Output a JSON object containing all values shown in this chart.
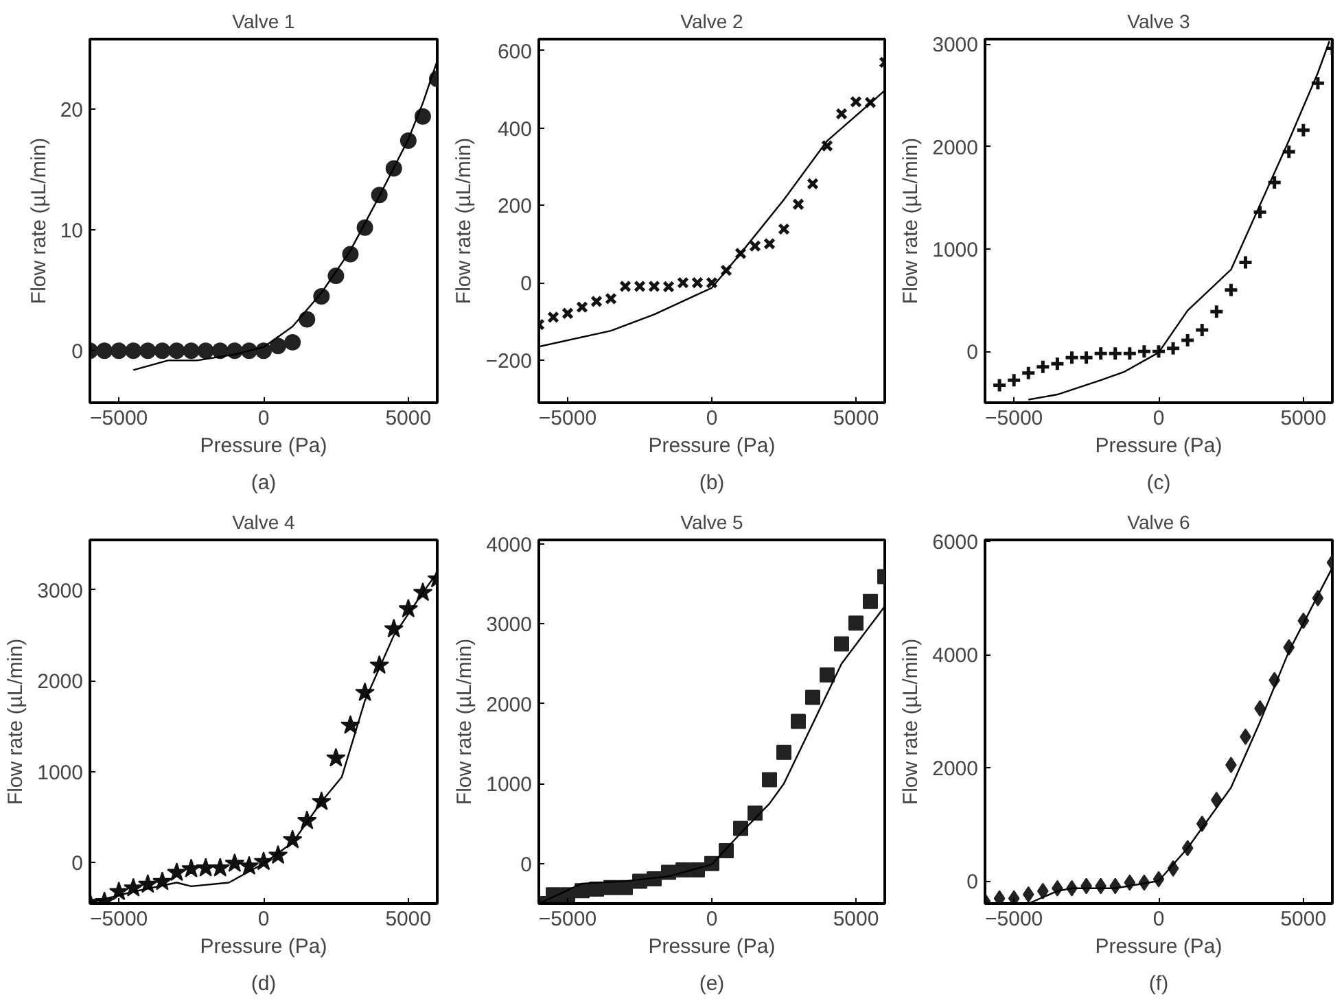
{
  "chart_data": [
    {
      "type": "scatter",
      "title": "Valve 1",
      "xlabel": "Pressure (Pa)",
      "ylabel": "Flow rate (µL/min)",
      "annotations": [
        "(a)"
      ],
      "xlim": [
        -6000,
        6000
      ],
      "ylim": [
        -4.3,
        25.8
      ],
      "xticks": [
        -5000,
        0,
        5000
      ],
      "yticks": [
        0,
        10,
        20
      ],
      "grid": false,
      "series": [
        {
          "marker": "circle",
          "color": "#222222",
          "x": [
            -6000,
            -5500,
            -5000,
            -4500,
            -4000,
            -3500,
            -3000,
            -2500,
            -2000,
            -1500,
            -1000,
            -500,
            0,
            500,
            1000,
            1500,
            2000,
            2500,
            3000,
            3500,
            4000,
            4500,
            5000,
            5500,
            6000
          ],
          "values": [
            0,
            0,
            0,
            0,
            0,
            0,
            0,
            0,
            0,
            0,
            0,
            0,
            0,
            0.4,
            0.7,
            2.6,
            4.5,
            6.2,
            8.0,
            10.2,
            12.9,
            15.1,
            17.4,
            19.4,
            22.5
          ]
        },
        {
          "type": "line",
          "color": "#000000",
          "x": [
            -4500,
            -3300,
            -2300,
            -1000,
            0,
            1000,
            2000,
            3000,
            4000,
            5000,
            5500,
            6000
          ],
          "values": [
            -1.6,
            -0.8,
            -0.8,
            -0.3,
            0.3,
            2.0,
            4.8,
            8.3,
            12.8,
            17.5,
            20.5,
            24.0
          ]
        }
      ]
    },
    {
      "type": "scatter",
      "title": "Valve 2",
      "xlabel": "Pressure (Pa)",
      "ylabel": "Flow rate (µL/min)",
      "annotations": [
        "(b)"
      ],
      "xlim": [
        -6000,
        6000
      ],
      "ylim": [
        -310,
        630
      ],
      "xticks": [
        -5000,
        0,
        5000
      ],
      "yticks": [
        -200,
        0,
        200,
        400,
        600
      ],
      "grid": false,
      "series": [
        {
          "marker": "x",
          "color": "#111111",
          "x": [
            -6000,
            -5500,
            -5000,
            -4500,
            -4000,
            -3500,
            -3000,
            -2500,
            -2000,
            -1500,
            -1000,
            -500,
            0,
            500,
            1000,
            1500,
            2000,
            2500,
            3000,
            3500,
            4000,
            4500,
            5000,
            5500,
            6000
          ],
          "values": [
            -108,
            -89,
            -79,
            -63,
            -48,
            -41,
            -9,
            -9,
            -9,
            -10,
            0,
            0,
            0,
            32,
            76,
            95,
            101,
            139,
            203,
            256,
            354,
            437,
            468,
            466,
            570
          ]
        },
        {
          "type": "line",
          "color": "#000000",
          "x": [
            -6000,
            -3500,
            -2000,
            0,
            1000,
            2500,
            4000,
            6000
          ],
          "values": [
            -165,
            -124,
            -82,
            -13,
            76,
            215,
            367,
            497
          ]
        }
      ]
    },
    {
      "type": "scatter",
      "title": "Valve 3",
      "xlabel": "Pressure (Pa)",
      "ylabel": "Flow rate (µL/min)",
      "annotations": [
        "(c)"
      ],
      "xlim": [
        -6000,
        6000
      ],
      "ylim": [
        -500,
        3050
      ],
      "xticks": [
        -5000,
        0,
        5000
      ],
      "yticks": [
        0,
        1000,
        2000,
        3000
      ],
      "grid": false,
      "series": [
        {
          "marker": "cross",
          "color": "#111111",
          "x": [
            -5500,
            -5000,
            -4500,
            -4000,
            -3500,
            -3000,
            -2500,
            -2000,
            -1500,
            -1000,
            -500,
            0,
            500,
            1000,
            1500,
            2000,
            2500,
            3000,
            3500,
            4000,
            4500,
            5000,
            5500,
            6000
          ],
          "values": [
            -330,
            -280,
            -210,
            -150,
            -120,
            -60,
            -60,
            -20,
            -20,
            -20,
            0,
            0,
            30,
            110,
            210,
            390,
            600,
            870,
            1360,
            1650,
            1950,
            2160,
            2620,
            2960
          ]
        },
        {
          "type": "line",
          "color": "#000000",
          "x": [
            -4500,
            -3500,
            -2000,
            -1200,
            0,
            1000,
            2500,
            3500,
            4500,
            5500,
            5900
          ],
          "values": [
            -470,
            -420,
            -280,
            -200,
            -10,
            400,
            800,
            1430,
            2060,
            2720,
            3030
          ]
        }
      ]
    },
    {
      "type": "scatter",
      "title": "Valve 4",
      "xlabel": "Pressure (Pa)",
      "ylabel": "Flow rate (µL/min)",
      "annotations": [
        "(d)"
      ],
      "xlim": [
        -6000,
        6000
      ],
      "ylim": [
        -450,
        3550
      ],
      "xticks": [
        -5000,
        0,
        5000
      ],
      "yticks": [
        0,
        1000,
        2000,
        3000
      ],
      "grid": false,
      "series": [
        {
          "marker": "star",
          "color": "#111111",
          "x": [
            -6000,
            -5500,
            -5000,
            -4500,
            -4000,
            -3500,
            -3000,
            -2500,
            -2000,
            -1500,
            -1000,
            -500,
            0,
            500,
            1000,
            1500,
            2000,
            2500,
            3000,
            3500,
            4000,
            4500,
            5000,
            5500,
            6000
          ],
          "values": [
            -440,
            -430,
            -320,
            -280,
            -240,
            -210,
            -110,
            -70,
            -60,
            -60,
            -10,
            -40,
            10,
            80,
            250,
            460,
            670,
            1150,
            1510,
            1870,
            2170,
            2570,
            2790,
            2970,
            3120
          ]
        },
        {
          "type": "line",
          "color": "#000000",
          "x": [
            -6000,
            -4500,
            -3000,
            -2500,
            -1200,
            0,
            1000,
            2000,
            2700,
            3500,
            4500,
            5500,
            6000
          ],
          "values": [
            -440,
            -320,
            -220,
            -260,
            -220,
            -10,
            220,
            670,
            940,
            1780,
            2500,
            2970,
            3190
          ]
        }
      ]
    },
    {
      "type": "scatter",
      "title": "Valve 5",
      "xlabel": "Pressure (Pa)",
      "ylabel": "Flow rate (µL/min)",
      "annotations": [
        "(e)"
      ],
      "xlim": [
        -6000,
        6000
      ],
      "ylim": [
        -500,
        4050
      ],
      "xticks": [
        -5000,
        0,
        5000
      ],
      "yticks": [
        0,
        1000,
        2000,
        3000,
        4000
      ],
      "grid": false,
      "series": [
        {
          "marker": "square",
          "color": "#222222",
          "x": [
            -6000,
            -5500,
            -5000,
            -4500,
            -4000,
            -3500,
            -3000,
            -2500,
            -2000,
            -1500,
            -1000,
            -500,
            0,
            500,
            1000,
            1500,
            2000,
            2500,
            3000,
            3500,
            4000,
            4500,
            5000,
            5500,
            6000
          ],
          "values": [
            -500,
            -390,
            -390,
            -340,
            -320,
            -300,
            -300,
            -220,
            -190,
            -110,
            -80,
            -80,
            0,
            160,
            440,
            630,
            1050,
            1390,
            1780,
            2080,
            2360,
            2750,
            3010,
            3280,
            3590
          ]
        },
        {
          "type": "line",
          "color": "#000000",
          "x": [
            -6000,
            -4500,
            -3000,
            -1500,
            0,
            1000,
            2000,
            2500,
            3500,
            4500,
            6000
          ],
          "values": [
            -500,
            -250,
            -220,
            -160,
            -10,
            380,
            750,
            1000,
            1750,
            2500,
            3220
          ]
        }
      ]
    },
    {
      "type": "scatter",
      "title": "Valve 6",
      "xlabel": "Pressure (Pa)",
      "ylabel": "Flow rate (µL/min)",
      "annotations": [
        "(f)"
      ],
      "xlim": [
        -6000,
        6000
      ],
      "ylim": [
        -400,
        6030
      ],
      "xticks": [
        -5000,
        0,
        5000
      ],
      "yticks": [
        0,
        2000,
        4000,
        6000
      ],
      "grid": false,
      "series": [
        {
          "marker": "diamond",
          "color": "#222222",
          "x": [
            -6000,
            -5500,
            -5000,
            -4500,
            -4000,
            -3500,
            -3000,
            -2500,
            -2000,
            -1500,
            -1000,
            -500,
            0,
            500,
            1000,
            1500,
            2000,
            2500,
            3000,
            3500,
            4000,
            4500,
            5000,
            5500,
            6000
          ],
          "values": [
            -360,
            -310,
            -310,
            -240,
            -180,
            -130,
            -130,
            -90,
            -90,
            -90,
            -30,
            -30,
            30,
            220,
            580,
            1010,
            1430,
            2050,
            2550,
            3050,
            3550,
            4130,
            4600,
            5000,
            5630
          ]
        },
        {
          "type": "line",
          "color": "#000000",
          "x": [
            -4500,
            -3500,
            -3000,
            -1500,
            0,
            1000,
            2500,
            3500,
            4500,
            6000
          ],
          "values": [
            -400,
            -180,
            -130,
            -130,
            0,
            580,
            1650,
            2810,
            4060,
            5540
          ]
        }
      ]
    }
  ]
}
